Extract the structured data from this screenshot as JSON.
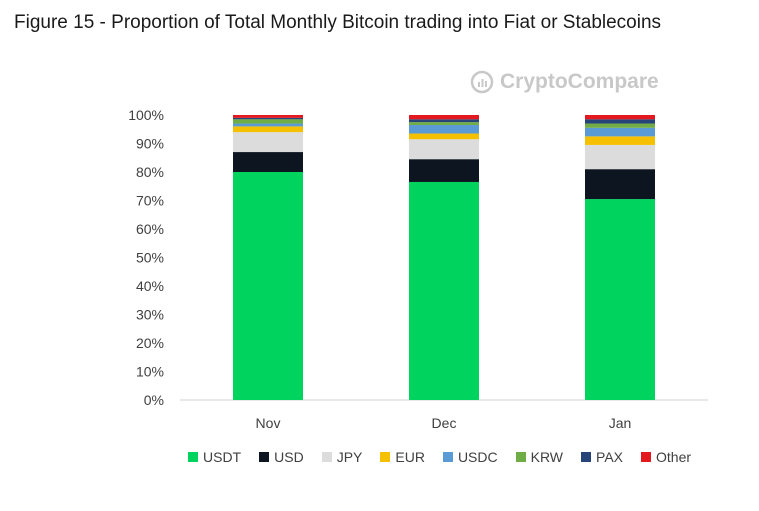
{
  "title": "Figure 15 - Proportion of Total Monthly Bitcoin trading into Fiat or Stablecoins",
  "watermark": "CryptoCompare",
  "chart_data": {
    "type": "bar",
    "stacked": true,
    "title": "",
    "xlabel": "",
    "ylabel": "",
    "ylim": [
      0,
      100
    ],
    "yticks": [
      "0%",
      "10%",
      "20%",
      "30%",
      "40%",
      "50%",
      "60%",
      "70%",
      "80%",
      "90%",
      "100%"
    ],
    "categories": [
      "Nov",
      "Dec",
      "Jan"
    ],
    "legend_position": "bottom",
    "grid": false,
    "series": [
      {
        "name": "USDT",
        "color": "#00d45f",
        "values": [
          80,
          76.5,
          70.5
        ]
      },
      {
        "name": "USD",
        "color": "#0d1521",
        "values": [
          7,
          8,
          10.5
        ]
      },
      {
        "name": "JPY",
        "color": "#dcdcdc",
        "values": [
          7,
          7,
          8.5
        ]
      },
      {
        "name": "EUR",
        "color": "#f5c000",
        "values": [
          2,
          2,
          3
        ]
      },
      {
        "name": "USDC",
        "color": "#5b9bd5",
        "values": [
          1,
          3,
          3
        ]
      },
      {
        "name": "KRW",
        "color": "#70ad47",
        "values": [
          1.5,
          1,
          1.5
        ]
      },
      {
        "name": "PAX",
        "color": "#264478",
        "values": [
          0.5,
          1,
          1.5
        ]
      },
      {
        "name": "Other",
        "color": "#e3191f",
        "values": [
          1,
          1.5,
          1.5
        ]
      }
    ]
  }
}
